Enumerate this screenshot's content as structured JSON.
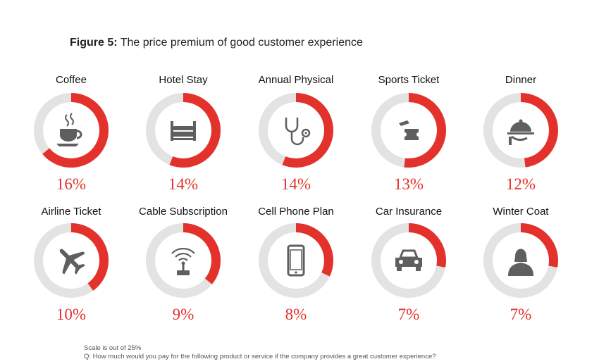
{
  "figure": {
    "label": "Figure 5:",
    "title": "The price premium of good customer experience"
  },
  "chart_data": {
    "type": "donut",
    "max_value": 25,
    "unit": "%",
    "items": [
      {
        "label": "Coffee",
        "value": 16,
        "value_label": "16%",
        "icon": "coffee-cup-icon"
      },
      {
        "label": "Hotel Stay",
        "value": 14,
        "value_label": "14%",
        "icon": "bed-icon"
      },
      {
        "label": "Annual Physical",
        "value": 14,
        "value_label": "14%",
        "icon": "stethoscope-icon"
      },
      {
        "label": "Sports Ticket",
        "value": 13,
        "value_label": "13%",
        "icon": "ticket-icon"
      },
      {
        "label": "Dinner",
        "value": 12,
        "value_label": "12%",
        "icon": "cloche-icon"
      },
      {
        "label": "Airline Ticket",
        "value": 10,
        "value_label": "10%",
        "icon": "airplane-icon"
      },
      {
        "label": "Cable Subscription",
        "value": 9,
        "value_label": "9%",
        "icon": "antenna-icon"
      },
      {
        "label": "Cell Phone Plan",
        "value": 8,
        "value_label": "8%",
        "icon": "phone-icon"
      },
      {
        "label": "Car Insurance",
        "value": 7,
        "value_label": "7%",
        "icon": "car-icon"
      },
      {
        "label": "Winter Coat",
        "value": 7,
        "value_label": "7%",
        "icon": "coat-person-icon"
      }
    ]
  },
  "colors": {
    "accent": "#e3312b",
    "track": "#e3e3e3",
    "icon": "#5f5f5f"
  },
  "footnotes": {
    "scale": "Scale is out of 25%",
    "question": "Q: How much would you pay for the following product or service if the company provides a great customer experience?"
  }
}
